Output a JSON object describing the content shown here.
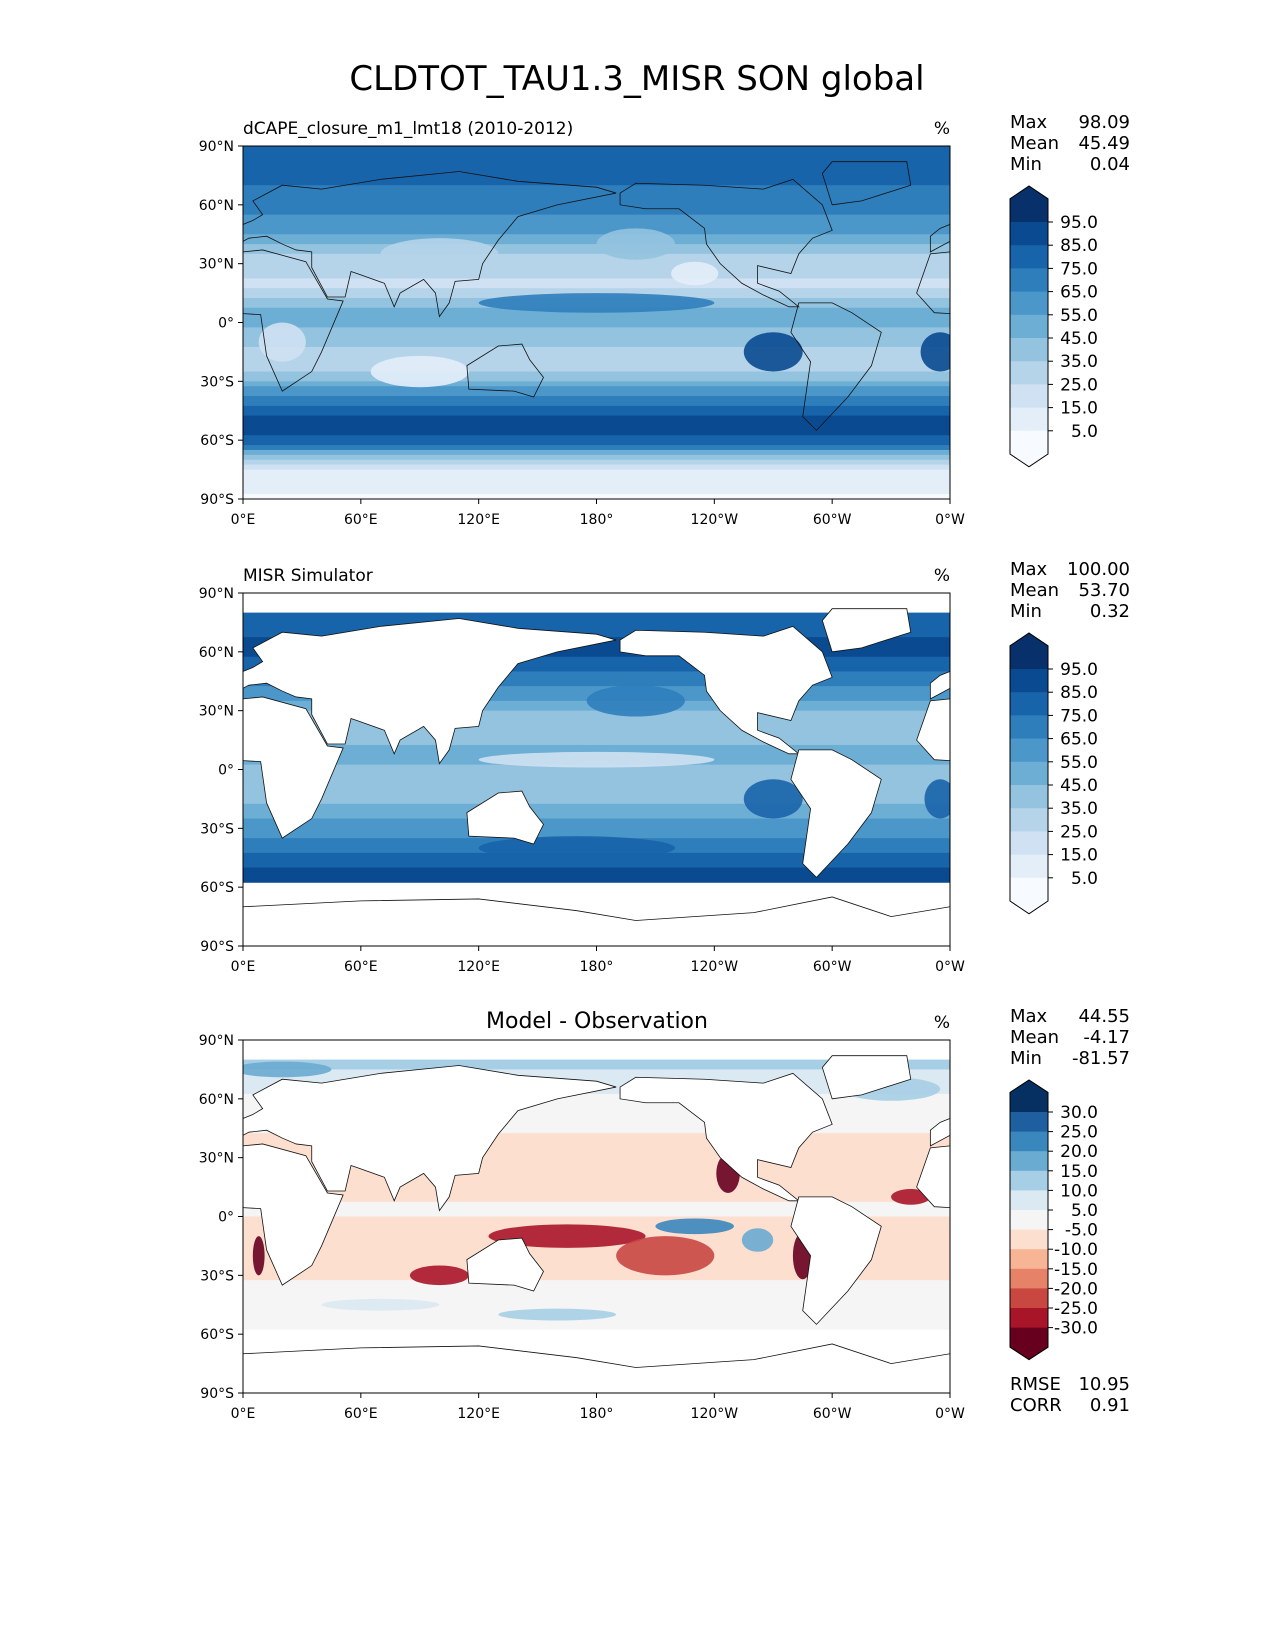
{
  "chart_data": {
    "type": "heatmap",
    "title": "CLDTOT_TAU1.3_MISR SON global",
    "lon_ticks": [
      "0°E",
      "60°E",
      "120°E",
      "180°",
      "120°W",
      "60°W",
      "0°W"
    ],
    "lat_ticks": [
      "90°N",
      "60°N",
      "30°N",
      "0°",
      "30°S",
      "60°S",
      "90°S"
    ],
    "panels": [
      {
        "title": "dCAPE_closure_m1_lmt18 (2010-2012)",
        "units": "%",
        "stats": {
          "max_label": "Max",
          "max": "98.09",
          "mean_label": "Mean",
          "mean": "45.49",
          "min_label": "Min",
          "min": "0.04"
        },
        "colorbar": {
          "ticks": [
            "95.0",
            "85.0",
            "75.0",
            "65.0",
            "55.0",
            "45.0",
            "35.0",
            "25.0",
            "15.0",
            "5.0"
          ],
          "colors": [
            "#08306b",
            "#0a4a90",
            "#1864aa",
            "#2f7ebc",
            "#4b97c9",
            "#6daed5",
            "#93c3df",
            "#b5d4e9",
            "#cfe1f2",
            "#e3eef9",
            "#f7fbff"
          ]
        }
      },
      {
        "title": "MISR Simulator",
        "units": "%",
        "stats": {
          "max_label": "Max",
          "max": "100.00",
          "mean_label": "Mean",
          "mean": "53.70",
          "min_label": "Min",
          "min": "0.32"
        },
        "colorbar": {
          "ticks": [
            "95.0",
            "85.0",
            "75.0",
            "65.0",
            "55.0",
            "45.0",
            "35.0",
            "25.0",
            "15.0",
            "5.0"
          ],
          "colors": [
            "#08306b",
            "#0a4a90",
            "#1864aa",
            "#2f7ebc",
            "#4b97c9",
            "#6daed5",
            "#93c3df",
            "#b5d4e9",
            "#cfe1f2",
            "#e3eef9",
            "#f7fbff"
          ]
        }
      },
      {
        "title": "Model - Observation",
        "units": "%",
        "stats": {
          "max_label": "Max",
          "max": "44.55",
          "mean_label": "Mean",
          "mean": "-4.17",
          "min_label": "Min",
          "min": "-81.57"
        },
        "extra": {
          "rmse_label": "RMSE",
          "rmse": "10.95",
          "corr_label": "CORR",
          "corr": "0.91"
        },
        "colorbar": {
          "ticks": [
            "30.0",
            "25.0",
            "20.0",
            "15.0",
            "10.0",
            "5.0",
            "-5.0",
            "-10.0",
            "-15.0",
            "-20.0",
            "-25.0",
            "-30.0"
          ],
          "colors": [
            "#053061",
            "#1f5fa0",
            "#3a87bd",
            "#6aabd2",
            "#a6cee4",
            "#dbe9f2",
            "#f5f5f5",
            "#fcdfcf",
            "#f7b596",
            "#e58267",
            "#c94741",
            "#a81529",
            "#67001f"
          ]
        }
      }
    ]
  }
}
